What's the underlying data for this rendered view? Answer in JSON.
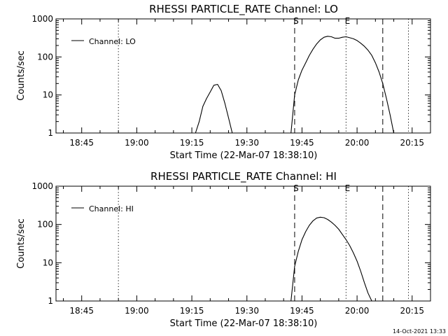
{
  "chart_data": [
    {
      "type": "line",
      "title": "RHESSI PARTICLE_RATE Channel: LO",
      "xlabel": "Start Time (22-Mar-07 18:38:10)",
      "ylabel": "Counts/sec",
      "yscale": "log",
      "ylim": [
        1,
        1000
      ],
      "xlim": [
        "18:38",
        "20:20"
      ],
      "y_ticks": [
        "1",
        "10",
        "100",
        "1000"
      ],
      "x_ticks": [
        "18:45",
        "19:00",
        "19:15",
        "19:30",
        "19:45",
        "20:00",
        "20:15"
      ],
      "legend": {
        "label": "Channel: LO",
        "position": "top-left"
      },
      "markers": [
        {
          "label": "S",
          "time": "19:43",
          "style": "dashed"
        },
        {
          "label": "E",
          "time": "19:57",
          "style": "dotted"
        }
      ],
      "vlines": [
        {
          "time": "18:55",
          "style": "dotted"
        },
        {
          "time": "20:07",
          "style": "dashed"
        },
        {
          "time": "20:14",
          "style": "dotted"
        }
      ],
      "series": [
        {
          "name": "Channel: LO",
          "segments": [
            {
              "x": [
                "19:16",
                "19:17",
                "19:18",
                "19:19",
                "19:20",
                "19:21",
                "19:22",
                "19:23",
                "19:24",
                "19:25",
                "19:26"
              ],
              "y": [
                1,
                2,
                5,
                8,
                12,
                18,
                19,
                13,
                6,
                2.5,
                1
              ]
            },
            {
              "x": [
                "19:42",
                "19:43",
                "19:44",
                "19:45",
                "19:46",
                "19:47",
                "19:48",
                "19:49",
                "19:50",
                "19:51",
                "19:52",
                "19:53",
                "19:54",
                "19:55",
                "19:56",
                "19:57",
                "19:58",
                "19:59",
                "20:00",
                "20:01",
                "20:02",
                "20:03",
                "20:04",
                "20:05",
                "20:06",
                "20:07",
                "20:08",
                "20:09",
                "20:10"
              ],
              "y": [
                1,
                10,
                25,
                45,
                70,
                110,
                160,
                220,
                280,
                330,
                350,
                340,
                310,
                310,
                330,
                340,
                320,
                300,
                270,
                230,
                190,
                150,
                110,
                70,
                40,
                20,
                8,
                3,
                1
              ]
            }
          ]
        }
      ]
    },
    {
      "type": "line",
      "title": "RHESSI PARTICLE_RATE Channel: HI",
      "xlabel": "Start Time (22-Mar-07 18:38:10)",
      "ylabel": "Counts/sec",
      "yscale": "log",
      "ylim": [
        1,
        1000
      ],
      "xlim": [
        "18:38",
        "20:20"
      ],
      "y_ticks": [
        "1",
        "10",
        "100",
        "1000"
      ],
      "x_ticks": [
        "18:45",
        "19:00",
        "19:15",
        "19:30",
        "19:45",
        "20:00",
        "20:15"
      ],
      "legend": {
        "label": "Channel: HI",
        "position": "top-left"
      },
      "markers": [
        {
          "label": "S",
          "time": "19:43",
          "style": "dashed"
        },
        {
          "label": "E",
          "time": "19:57",
          "style": "dotted"
        }
      ],
      "vlines": [
        {
          "time": "18:55",
          "style": "dotted"
        },
        {
          "time": "20:07",
          "style": "dashed"
        },
        {
          "time": "20:14",
          "style": "dotted"
        }
      ],
      "series": [
        {
          "name": "Channel: HI",
          "segments": [
            {
              "x": [
                "19:42",
                "19:43",
                "19:44",
                "19:45",
                "19:46",
                "19:47",
                "19:48",
                "19:49",
                "19:50",
                "19:51",
                "19:52",
                "19:53",
                "19:54",
                "19:55",
                "19:56",
                "19:57",
                "19:58",
                "19:59",
                "20:00",
                "20:01",
                "20:02",
                "20:03",
                "20:04"
              ],
              "y": [
                1,
                8,
                20,
                40,
                65,
                95,
                125,
                148,
                155,
                150,
                135,
                115,
                95,
                75,
                55,
                40,
                28,
                18,
                11,
                6,
                3,
                1.6,
                1
              ]
            }
          ]
        }
      ]
    }
  ],
  "footer": {
    "timestamp": "14-Oct-2021 13:33"
  }
}
